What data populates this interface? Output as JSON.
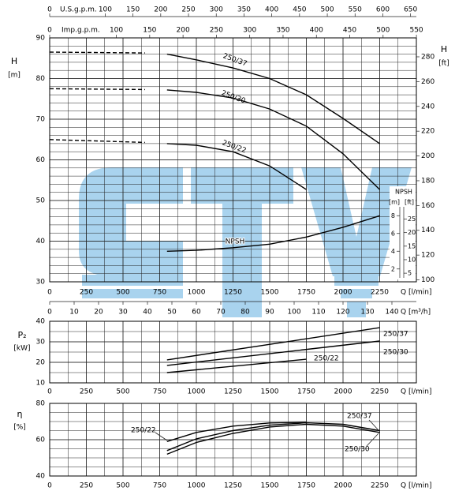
{
  "chart_data": [
    {
      "type": "line",
      "y_label": "H",
      "y_unit": "[m]",
      "x_label": "Q [l/min]",
      "xlim": [
        0,
        2500
      ],
      "xticks": [
        0,
        250,
        500,
        750,
        1000,
        1250,
        1500,
        1750,
        2000,
        2250
      ],
      "ylim": [
        30,
        90
      ],
      "yticks": [
        30,
        40,
        50,
        60,
        70,
        80,
        90
      ],
      "y2_label": "H",
      "y2_unit": "[ft]",
      "y2lim": [
        98.43,
        295.28
      ],
      "y2ticks": [
        100,
        120,
        140,
        160,
        180,
        200,
        220,
        240,
        260,
        280
      ],
      "grid": true,
      "grid_minor": {
        "x": 125,
        "y": 2
      },
      "color": "#000000",
      "top_axes": [
        {
          "label": "U.S.g.p.m.",
          "xlim": [
            0,
            660.4
          ],
          "xticks": [
            0,
            100,
            150,
            200,
            250,
            300,
            350,
            400,
            450,
            500,
            550,
            600,
            650
          ]
        },
        {
          "label": "Imp.g.p.m.",
          "xlim": [
            0,
            549.9
          ],
          "xticks": [
            0,
            100,
            150,
            200,
            250,
            300,
            350,
            400,
            450,
            500,
            550
          ]
        }
      ],
      "x2_axis": {
        "label": "Q [m³/h]",
        "xlim": [
          0,
          150
        ],
        "xticks": [
          0,
          10,
          20,
          30,
          40,
          50,
          60,
          70,
          80,
          90,
          100,
          110,
          120,
          130,
          140
        ]
      },
      "npsh_axis": {
        "label": "NPSH",
        "unit": "[m]",
        "unit2": "[ft]",
        "ylim": [
          1,
          9
        ],
        "yticks": [
          2,
          4,
          6,
          8
        ],
        "y2lim": [
          3.281,
          29.528
        ],
        "y2ticks": [
          5,
          10,
          15,
          20,
          25
        ]
      },
      "series": [
        {
          "name": "250/37",
          "solid_from": 800,
          "x": [
            0,
            650,
            800,
            1000,
            1250,
            1500,
            1750,
            2000,
            2250
          ],
          "values": [
            86.5,
            86.3,
            86,
            84.6,
            82.6,
            80,
            76,
            70.2,
            64
          ]
        },
        {
          "name": "250/30",
          "solid_from": 800,
          "x": [
            0,
            650,
            800,
            1000,
            1250,
            1500,
            1750,
            2000,
            2250
          ],
          "values": [
            77.5,
            77.3,
            77.2,
            76.6,
            75.2,
            72.5,
            68.3,
            61.5,
            52.7
          ]
        },
        {
          "name": "250/22",
          "solid_from": 800,
          "x": [
            0,
            650,
            800,
            1000,
            1250,
            1500,
            1750
          ],
          "values": [
            65,
            64.3,
            64,
            63.6,
            62,
            58.5,
            52.7
          ]
        },
        {
          "name": "NPSH",
          "axis": "npsh",
          "x": [
            800,
            1000,
            1250,
            1500,
            1750,
            2000,
            2250
          ],
          "values": [
            4.0,
            4.1,
            4.4,
            4.8,
            5.6,
            6.7,
            8.0
          ]
        }
      ]
    },
    {
      "type": "line",
      "y_label": "P₂",
      "y_unit": "[kW]",
      "x_label": "Q [l/min]",
      "xlim": [
        0,
        2500
      ],
      "xticks": [
        0,
        250,
        500,
        750,
        1000,
        1250,
        1500,
        1750,
        2000,
        2250
      ],
      "ylim": [
        10,
        40
      ],
      "yticks": [
        10,
        20,
        30,
        40
      ],
      "grid": true,
      "grid_minor": {
        "x": 125,
        "y": 5
      },
      "color": "#000000",
      "series": [
        {
          "name": "250/37",
          "x": [
            800,
            2250
          ],
          "values": [
            21.2,
            36.9
          ]
        },
        {
          "name": "250/30",
          "x": [
            800,
            2250
          ],
          "values": [
            18.5,
            30.4
          ]
        },
        {
          "name": "250/22",
          "x": [
            800,
            1750
          ],
          "values": [
            15,
            21.5
          ]
        }
      ]
    },
    {
      "type": "line",
      "y_label": "η",
      "y_unit": "[%]",
      "x_label": "Q [l/min]",
      "xlim": [
        0,
        2500
      ],
      "xticks": [
        0,
        250,
        500,
        750,
        1000,
        1250,
        1500,
        1750,
        2000,
        2250
      ],
      "ylim": [
        40,
        80
      ],
      "yticks": [
        40,
        60,
        80
      ],
      "grid": true,
      "grid_minor": {
        "x": 125,
        "y": 5
      },
      "color": "#000000",
      "series": [
        {
          "name": "250/22",
          "x": [
            800,
            1000,
            1250,
            1500,
            1750
          ],
          "values": [
            59,
            64,
            67.5,
            69.2,
            69.5
          ]
        },
        {
          "name": "250/37",
          "x": [
            800,
            1000,
            1250,
            1500,
            1750,
            2000,
            2250
          ],
          "values": [
            54,
            60.5,
            65,
            68,
            69.3,
            68.5,
            65
          ]
        },
        {
          "name": "250/30",
          "x": [
            800,
            1000,
            1250,
            1500,
            1750,
            2000,
            2250
          ],
          "values": [
            52,
            58.5,
            63.5,
            67,
            68.5,
            67.5,
            64
          ]
        }
      ]
    }
  ]
}
